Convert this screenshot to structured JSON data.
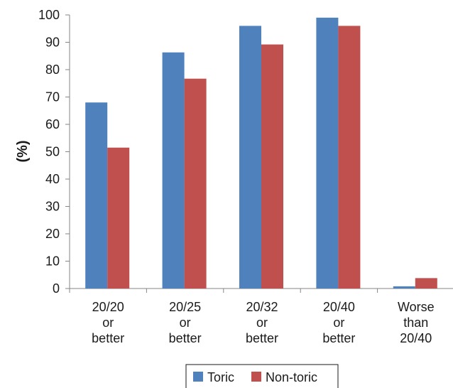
{
  "chart_data": {
    "type": "bar",
    "categories": [
      [
        "20/20",
        "or",
        "better"
      ],
      [
        "20/25",
        "or",
        "better"
      ],
      [
        "20/32",
        "or",
        "better"
      ],
      [
        "20/40",
        "or",
        "better"
      ],
      [
        "Worse",
        "than",
        "20/40"
      ]
    ],
    "series": [
      {
        "name": "Toric",
        "color": "#4f81bd",
        "values": [
          68,
          86.3,
          96,
          99,
          0.8
        ]
      },
      {
        "name": "Non-toric",
        "color": "#c0504d",
        "values": [
          51.5,
          76.7,
          89.2,
          96,
          3.8
        ]
      }
    ],
    "ylabel": "(%)",
    "ylim": [
      0,
      100
    ],
    "yticks": [
      0,
      10,
      20,
      30,
      40,
      50,
      60,
      70,
      80,
      90,
      100
    ],
    "grid": false,
    "legend_position": "bottom"
  }
}
